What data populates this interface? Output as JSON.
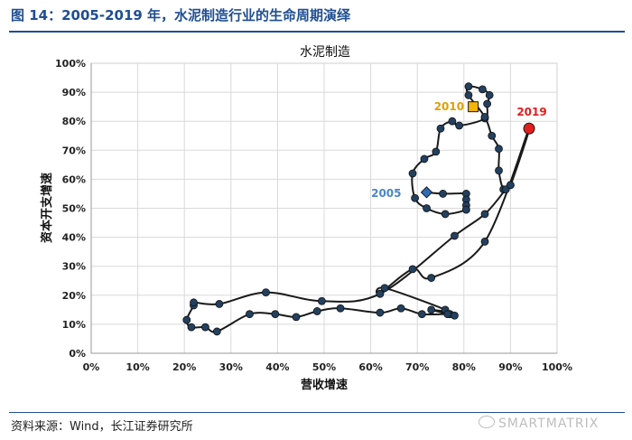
{
  "header": {
    "figure_title": "图 14：2005-2019 年，水泥制造行业的生命周期演绎"
  },
  "footer": {
    "source": "资料来源：Wind，长江证券研究所",
    "watermark": "SMARTMATRIX"
  },
  "chart_data": {
    "type": "line",
    "title": "水泥制造",
    "xlabel": "营收增速",
    "ylabel": "资本开支增速",
    "xlim": [
      0,
      100
    ],
    "ylim": [
      0,
      100
    ],
    "x_ticks": [
      "0%",
      "10%",
      "20%",
      "30%",
      "40%",
      "50%",
      "60%",
      "70%",
      "80%",
      "90%",
      "100%"
    ],
    "y_ticks": [
      "0%",
      "10%",
      "20%",
      "30%",
      "40%",
      "50%",
      "60%",
      "70%",
      "80%",
      "90%",
      "100%"
    ],
    "grid": true,
    "series": [
      {
        "name": "水泥制造",
        "points": [
          [
            72,
            55.5
          ],
          [
            75.5,
            55
          ],
          [
            80.5,
            55
          ],
          [
            80.5,
            53
          ],
          [
            80.5,
            51
          ],
          [
            80.5,
            49.5
          ],
          [
            76,
            48
          ],
          [
            72,
            50
          ],
          [
            69.5,
            53.5
          ],
          [
            69,
            62
          ],
          [
            71.5,
            67
          ],
          [
            74,
            69.5
          ],
          [
            75,
            77.5
          ],
          [
            77.5,
            80
          ],
          [
            79,
            78.5
          ],
          [
            84.5,
            81
          ],
          [
            85,
            86
          ],
          [
            85.5,
            89
          ],
          [
            84,
            91
          ],
          [
            81,
            92
          ],
          [
            81,
            89
          ],
          [
            84.5,
            81.5
          ],
          [
            86,
            75
          ],
          [
            87.5,
            70.5
          ],
          [
            87.5,
            63
          ],
          [
            88.5,
            56.5
          ],
          [
            90,
            58
          ],
          [
            94,
            77.5
          ],
          [
            84.5,
            38.5
          ],
          [
            73,
            26
          ],
          [
            69,
            29
          ],
          [
            62,
            20.5
          ],
          [
            63,
            22.5
          ],
          [
            76,
            15
          ],
          [
            73,
            15
          ],
          [
            77,
            13.5
          ],
          [
            78,
            13
          ],
          [
            76.5,
            13.5
          ],
          [
            71,
            13.5
          ],
          [
            66.5,
            15.5
          ],
          [
            62,
            14
          ],
          [
            53.5,
            15.5
          ],
          [
            48.5,
            14.5
          ],
          [
            44,
            12.5
          ],
          [
            39.5,
            13.5
          ],
          [
            34,
            13.5
          ],
          [
            27,
            7.5
          ],
          [
            24.5,
            9
          ],
          [
            21.5,
            9
          ],
          [
            20.5,
            11.5
          ],
          [
            22,
            16.5
          ],
          [
            22,
            17.5
          ],
          [
            27.5,
            17
          ],
          [
            37.5,
            21
          ],
          [
            49.5,
            18
          ],
          [
            62,
            20.5
          ],
          [
            78,
            40.5
          ],
          [
            84.5,
            48
          ],
          [
            89,
            56.5
          ],
          [
            90,
            58
          ]
        ]
      }
    ],
    "highlights": [
      {
        "label": "2005",
        "x": 72,
        "y": 55.5,
        "marker": "diamond",
        "color": "#2e6db3",
        "label_color": "#4a86c8"
      },
      {
        "label": "2010",
        "x": 82,
        "y": 85,
        "marker": "square",
        "color": "#f4b400",
        "label_color": "#e0a000"
      },
      {
        "label": "2019",
        "x": 94,
        "y": 77.5,
        "marker": "circle",
        "color": "#e0201f",
        "label_color": "#e0201f"
      }
    ]
  }
}
